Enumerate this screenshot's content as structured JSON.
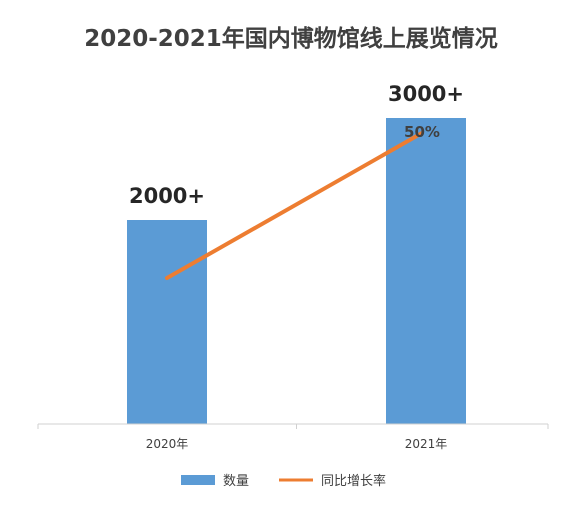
{
  "chart_data": {
    "type": "bar",
    "title": "2020-2021年国内博物馆线上展览情况",
    "categories": [
      "2020年",
      "2021年"
    ],
    "series": [
      {
        "name": "数量",
        "kind": "bar",
        "values": [
          2000,
          3000
        ],
        "labels": [
          "2000+",
          "3000+"
        ],
        "color": "#5B9BD5"
      },
      {
        "name": "同比增长率",
        "kind": "line",
        "values": [
          null,
          50
        ],
        "labels": [
          "",
          "50%"
        ],
        "color": "#ED7D31"
      }
    ],
    "ylim": [
      0,
      3500
    ],
    "xlabel": "",
    "ylabel": "",
    "grid": false,
    "legend_position": "bottom"
  }
}
